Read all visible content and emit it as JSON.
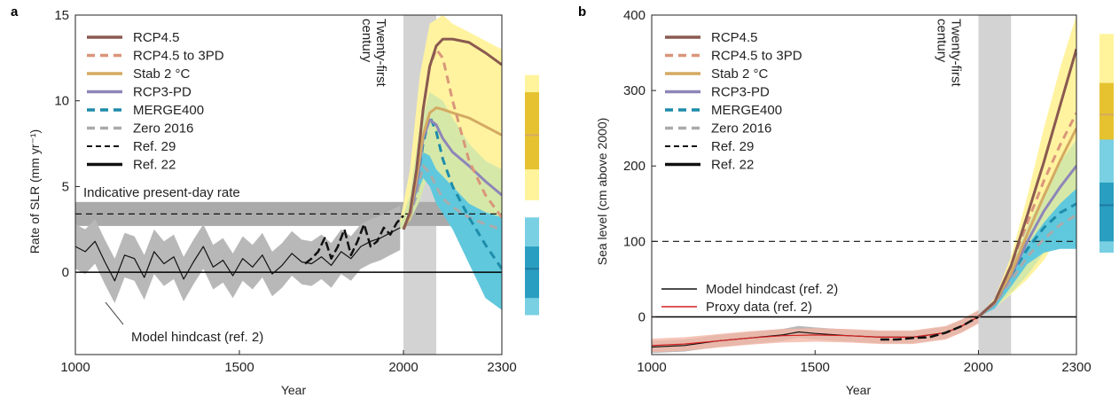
{
  "colors": {
    "rcp45": "#8a5a50",
    "rcp45_3pd": "#d9967a",
    "stab2": "#d4aa62",
    "rcp3pd": "#8e86b8",
    "merge400": "#1e8caa",
    "zero2016": "#aaaaaa",
    "ref29": "#111111",
    "ref22": "#111111",
    "hindcast": "#111111",
    "proxy": "#d42020",
    "yellow_band": "#fff3a0",
    "green_band": "#d6e8a8",
    "cyan_band": "#60c8dc",
    "grey_band": "#aaaaaa",
    "century_band": "#d3d3d3",
    "bar_yellow_light": "#fff49c",
    "bar_yellow_dark": "#e6c230",
    "bar_cyan_light": "#78d0e2",
    "bar_cyan_dark": "#2a9ec0"
  },
  "panel_a": {
    "letter": "a",
    "ylabel": "Rate of SLR (mm yr⁻¹)",
    "xlabel": "Year",
    "century_label": "Twenty-first century",
    "present_day_label": "Indicative present-day rate",
    "hindcast_label": "Model hindcast (ref. 2)",
    "legend": [
      "RCP4.5",
      "RCP4.5 to 3PD",
      "Stab 2 °C",
      "RCP3-PD",
      "MERGE400",
      "Zero 2016",
      "Ref. 29",
      "Ref. 22"
    ]
  },
  "panel_b": {
    "letter": "b",
    "ylabel": "Sea level (cm above 2000)",
    "xlabel": "Year",
    "century_label": "Twenty-first century",
    "legend": [
      "RCP4.5",
      "RCP4.5 to 3PD",
      "Stab 2 °C",
      "RCP3-PD",
      "MERGE400",
      "Zero 2016",
      "Ref. 29",
      "Ref. 22"
    ],
    "legend2": [
      "Model hindcast (ref. 2)",
      "Proxy data (ref. 2)"
    ]
  },
  "chart_data": [
    {
      "type": "line",
      "title": "",
      "xlabel": "Year",
      "ylabel": "Rate of SLR (mm yr⁻¹)",
      "xlim": [
        1000,
        2300
      ],
      "ylim": [
        -4.8,
        15
      ],
      "xticks": [
        1000,
        1500,
        2000,
        2300
      ],
      "yticks": [
        0,
        5,
        10,
        15
      ],
      "reference_lines": {
        "ref29": 3.4,
        "zero": 0,
        "present_day_band": [
          2.7,
          4.1
        ]
      },
      "series": [
        {
          "name": "RCP4.5",
          "x": [
            2000,
            2020,
            2040,
            2060,
            2080,
            2100,
            2120,
            2150,
            2200,
            2250,
            2300
          ],
          "y": [
            2.5,
            3.5,
            6.0,
            9.5,
            12.0,
            13.2,
            13.6,
            13.6,
            13.4,
            12.8,
            12.1
          ]
        },
        {
          "name": "RCP4.5 to 3PD",
          "x": [
            2000,
            2020,
            2040,
            2060,
            2080,
            2100,
            2120,
            2150,
            2200,
            2250,
            2300
          ],
          "y": [
            2.5,
            3.5,
            6.0,
            9.5,
            12.0,
            13.0,
            12.5,
            10.0,
            6.5,
            4.5,
            3.2
          ]
        },
        {
          "name": "Stab 2 °C",
          "x": [
            2000,
            2020,
            2040,
            2060,
            2080,
            2100,
            2120,
            2150,
            2200,
            2250,
            2300
          ],
          "y": [
            2.5,
            3.3,
            5.5,
            8.0,
            9.3,
            9.6,
            9.5,
            9.3,
            9.0,
            8.5,
            8.0
          ]
        },
        {
          "name": "RCP3-PD",
          "x": [
            2000,
            2020,
            2040,
            2060,
            2080,
            2100,
            2120,
            2150,
            2200,
            2250,
            2300
          ],
          "y": [
            2.5,
            3.3,
            5.0,
            7.8,
            8.9,
            8.6,
            7.8,
            7.0,
            6.2,
            5.3,
            4.5
          ]
        },
        {
          "name": "MERGE400",
          "x": [
            2000,
            2020,
            2040,
            2060,
            2080,
            2100,
            2120,
            2150,
            2200,
            2250,
            2300
          ],
          "y": [
            2.5,
            3.3,
            5.0,
            7.5,
            9.1,
            8.2,
            6.6,
            5.0,
            3.2,
            1.6,
            0.2
          ]
        },
        {
          "name": "Zero 2016",
          "x": [
            2000,
            2020,
            2040,
            2060,
            2080,
            2100,
            2120,
            2150,
            2200,
            2250,
            2300
          ],
          "y": [
            2.5,
            3.3,
            4.5,
            6.2,
            5.8,
            5.0,
            4.3,
            3.8,
            3.2,
            2.8,
            2.5
          ]
        },
        {
          "name": "Ref. 22",
          "x": [
            1700,
            1720,
            1740,
            1760,
            1780,
            1800,
            1820,
            1840,
            1860,
            1880,
            1900,
            1920,
            1940,
            1960,
            1980,
            2000
          ],
          "y": [
            0.5,
            0.8,
            1.2,
            2.0,
            0.8,
            1.5,
            2.5,
            1.0,
            1.8,
            2.8,
            1.5,
            1.8,
            2.6,
            2.2,
            2.9,
            3.3
          ]
        },
        {
          "name": "Model hindcast (ref. 2)",
          "x": [
            1000,
            1030,
            1060,
            1090,
            1120,
            1150,
            1180,
            1210,
            1240,
            1270,
            1300,
            1330,
            1360,
            1390,
            1420,
            1450,
            1480,
            1510,
            1540,
            1570,
            1600,
            1630,
            1660,
            1690,
            1720,
            1750,
            1780,
            1810,
            1840,
            1870,
            1900,
            1930,
            1960,
            1990
          ],
          "y": [
            1.5,
            1.2,
            1.8,
            0.6,
            -0.5,
            1.0,
            0.8,
            -0.3,
            1.2,
            0.5,
            0.9,
            -0.4,
            0.6,
            1.5,
            0.3,
            0.7,
            -0.2,
            0.8,
            0.3,
            1.0,
            -0.1,
            0.4,
            1.1,
            0.6,
            0.5,
            0.9,
            0.4,
            1.2,
            0.8,
            1.5,
            1.8,
            2.0,
            2.3,
            2.6
          ]
        }
      ],
      "bands": {
        "yellow": {
          "x": [
            1990,
            2020,
            2050,
            2080,
            2120,
            2150,
            2200,
            2250,
            2300
          ],
          "low": [
            2.5,
            3.0,
            4.5,
            6.5,
            5.5,
            4.5,
            3.5,
            3.0,
            2.8
          ],
          "high": [
            3.0,
            6.0,
            11.5,
            14.5,
            15.0,
            14.5,
            14.0,
            13.5,
            13.0
          ]
        },
        "green": {
          "x": [
            1990,
            2020,
            2050,
            2080,
            2120,
            2150,
            2200,
            2250,
            2300
          ],
          "low": [
            2.5,
            3.0,
            4.2,
            6.0,
            4.5,
            3.8,
            3.0,
            2.6,
            2.4
          ],
          "high": [
            2.8,
            4.5,
            8.5,
            10.5,
            10.0,
            9.0,
            7.5,
            6.5,
            6.0
          ]
        },
        "cyan": {
          "x": [
            2040,
            2060,
            2080,
            2100,
            2150,
            2200,
            2250,
            2300
          ],
          "low": [
            4.5,
            5.5,
            5.0,
            4.0,
            2.5,
            0.5,
            -1.5,
            -2.2
          ],
          "high": [
            5.5,
            7.0,
            6.8,
            6.0,
            5.0,
            4.0,
            3.5,
            3.2
          ]
        }
      },
      "side_bars": [
        {
          "low": 4.2,
          "high": 11.5,
          "inner_low": 6.0,
          "inner_high": 10.5,
          "median": 8.0
        },
        {
          "low": -2.5,
          "high": 3.2,
          "inner_low": -1.5,
          "inner_high": 1.5,
          "median": 0.2
        }
      ]
    },
    {
      "type": "line",
      "title": "",
      "xlabel": "Year",
      "ylabel": "Sea level (cm above 2000)",
      "xlim": [
        1000,
        2300
      ],
      "ylim": [
        -50,
        400
      ],
      "xticks": [
        1000,
        1500,
        2000,
        2300
      ],
      "yticks": [
        0,
        100,
        200,
        300,
        400
      ],
      "reference_lines": {
        "ref29": 100,
        "zero": 0
      },
      "series": [
        {
          "name": "RCP4.5",
          "x": [
            2000,
            2050,
            2100,
            2150,
            2200,
            2250,
            2300
          ],
          "y": [
            0,
            20,
            68,
            135,
            205,
            280,
            355
          ]
        },
        {
          "name": "RCP4.5 to 3PD",
          "x": [
            2000,
            2050,
            2100,
            2150,
            2200,
            2250,
            2300
          ],
          "y": [
            0,
            20,
            68,
            125,
            180,
            228,
            270
          ]
        },
        {
          "name": "Stab 2 °C",
          "x": [
            2000,
            2050,
            2100,
            2150,
            2200,
            2250,
            2300
          ],
          "y": [
            0,
            19,
            58,
            110,
            160,
            207,
            250
          ]
        },
        {
          "name": "RCP3-PD",
          "x": [
            2000,
            2050,
            2100,
            2150,
            2200,
            2250,
            2300
          ],
          "y": [
            0,
            18,
            55,
            100,
            140,
            172,
            200
          ]
        },
        {
          "name": "MERGE400",
          "x": [
            2000,
            2050,
            2100,
            2150,
            2200,
            2250,
            2300
          ],
          "y": [
            0,
            18,
            55,
            90,
            118,
            138,
            150
          ]
        },
        {
          "name": "Zero 2016",
          "x": [
            2000,
            2050,
            2100,
            2150,
            2200,
            2250,
            2300
          ],
          "y": [
            0,
            17,
            48,
            80,
            103,
            122,
            135
          ]
        },
        {
          "name": "Ref. 22",
          "x": [
            1700,
            1750,
            1800,
            1850,
            1900,
            1950,
            2000
          ],
          "y": [
            -30,
            -30,
            -28,
            -27,
            -21,
            -12,
            0
          ]
        },
        {
          "name": "Model hindcast (ref. 2)",
          "x": [
            1000,
            1100,
            1200,
            1300,
            1400,
            1450,
            1500,
            1600,
            1700,
            1800,
            1900,
            1950,
            2000
          ],
          "y": [
            -40,
            -38,
            -32,
            -28,
            -24,
            -20,
            -22,
            -25,
            -27,
            -27,
            -21,
            -12,
            0
          ]
        },
        {
          "name": "Proxy data (ref. 2)",
          "x": [
            1000,
            1100,
            1200,
            1300,
            1400,
            1500,
            1600,
            1700,
            1800,
            1900,
            1950,
            2000
          ],
          "y": [
            -38,
            -36,
            -32,
            -28,
            -25,
            -24,
            -25,
            -27,
            -27,
            -21,
            -12,
            0
          ]
        }
      ],
      "bands": {
        "yellow": {
          "x": [
            2000,
            2050,
            2100,
            2150,
            2200,
            2250,
            2300
          ],
          "low": [
            0,
            12,
            30,
            50,
            75,
            110,
            140
          ],
          "high": [
            0,
            25,
            80,
            160,
            250,
            330,
            400
          ]
        },
        "green": {
          "x": [
            2000,
            2050,
            2100,
            2150,
            2200,
            2250,
            2300
          ],
          "low": [
            0,
            12,
            32,
            55,
            85,
            100,
            105
          ],
          "high": [
            0,
            22,
            65,
            120,
            165,
            205,
            235
          ]
        },
        "cyan": {
          "x": [
            2000,
            2050,
            2100,
            2150,
            2200,
            2250,
            2300
          ],
          "low": [
            0,
            11,
            40,
            70,
            85,
            90,
            90
          ],
          "high": [
            0,
            18,
            55,
            95,
            125,
            150,
            170
          ]
        }
      },
      "side_bars": [
        {
          "low": 160,
          "high": 375,
          "inner_low": 185,
          "inner_high": 310,
          "median": 268
        },
        {
          "low": 85,
          "high": 235,
          "inner_low": 100,
          "inner_high": 178,
          "median": 148
        }
      ]
    }
  ]
}
